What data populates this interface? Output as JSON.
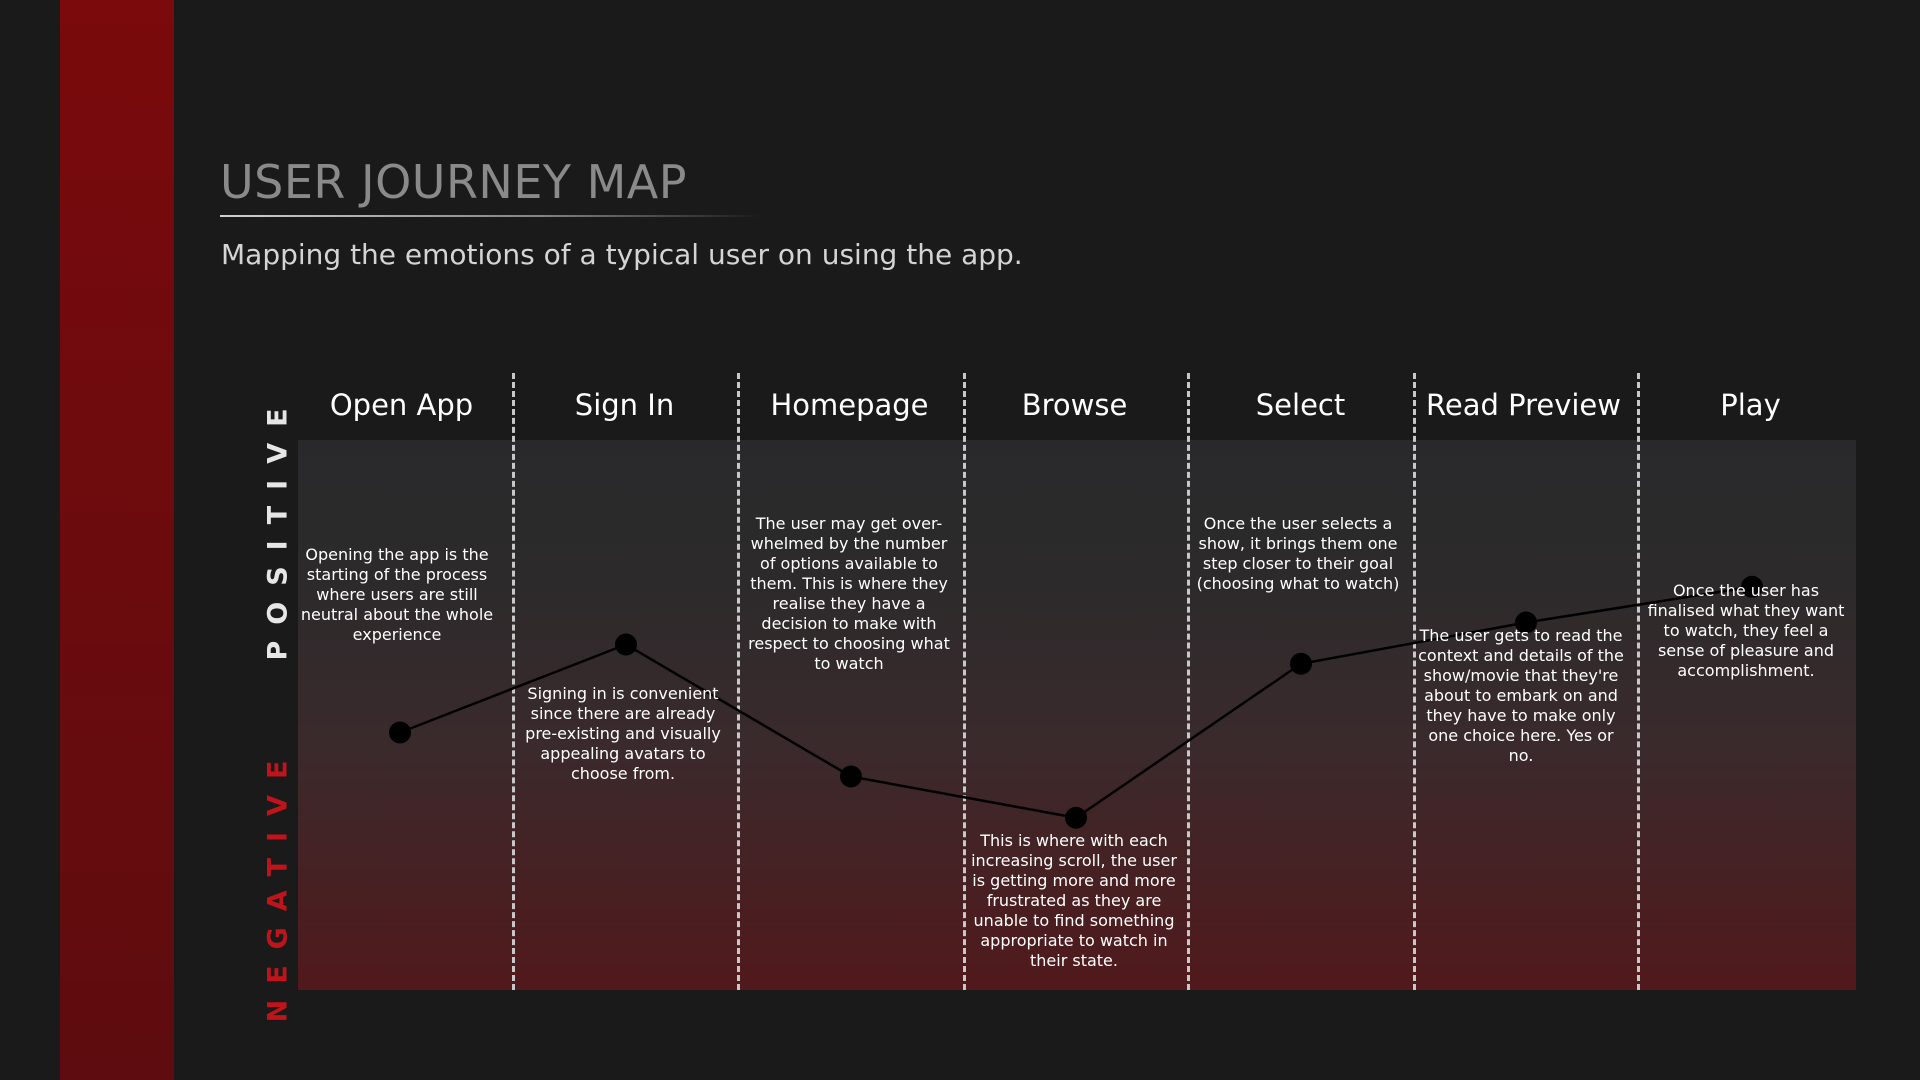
{
  "title": "USER JOURNEY MAP",
  "subtitle": "Mapping the emotions of a typical user on using the app.",
  "axis": {
    "positive": "POSITIVE",
    "negative": "NEGATIVE"
  },
  "colors": {
    "accent_red": "#7a0a0c",
    "negative_label": "#c0141a",
    "background": "#1a1a1b"
  },
  "stages": [
    {
      "label": "Open App",
      "note": "Opening the app is the starting of the process where users are still neutral about the whole experience"
    },
    {
      "label": "Sign In",
      "note": "Signing in is convenient since there are already pre-existing and visually appealing avatars to choose from."
    },
    {
      "label": "Homepage",
      "note": "The user may get over-whelmed by the number of options available to them. This is where they realise they have a decision to make with respect to choosing what to watch"
    },
    {
      "label": "Browse",
      "note": "This is where with each increasing scroll, the user is getting more and more frustrated as they are unable to find something appropriate to watch in their state."
    },
    {
      "label": "Select",
      "note": "Once the user selects a show, it brings them one step closer to their goal (choosing what to watch)"
    },
    {
      "label": "Read Preview",
      "note": "The user gets to read the context and details of the show/movie that they're about to embark on and they have to make only one choice here. Yes or no."
    },
    {
      "label": "Play",
      "note": "Once the user has finalised what they want to watch, they feel a sense of pleasure and accomplishment."
    }
  ],
  "chart_data": {
    "type": "line",
    "categories": [
      "Open App",
      "Sign In",
      "Homepage",
      "Browse",
      "Select",
      "Read Preview",
      "Play"
    ],
    "values": [
      -0.1,
      0.22,
      -0.26,
      -0.41,
      0.15,
      0.3,
      0.43
    ],
    "ylim": [
      -1,
      1
    ]
  }
}
